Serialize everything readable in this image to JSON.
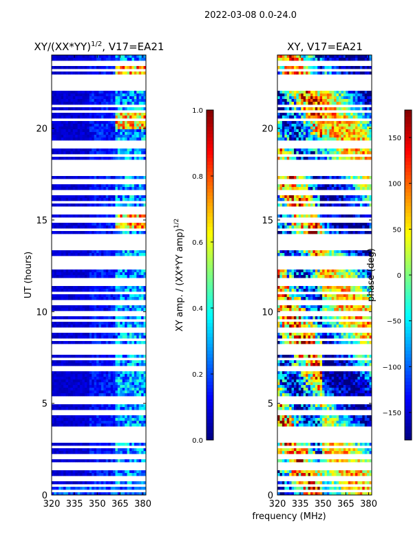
{
  "figure_title": "2022-03-08 0.0-24.0",
  "chart_data": [
    {
      "type": "heatmap",
      "title_main": "XY/(XX*YY)",
      "title_sup": "1/2",
      "title_suffix": ", V17=EA21",
      "xlabel": "",
      "ylabel": "UT (hours)",
      "xlim": [
        320,
        382
      ],
      "ylim": [
        0,
        24
      ],
      "x_ticks": [
        320,
        335,
        350,
        365,
        380
      ],
      "y_ticks": [
        0,
        5,
        10,
        15,
        20
      ],
      "colorbar": {
        "label": "XY amp. / (XX*YY amp)",
        "label_sup": "1/2",
        "range": [
          0.0,
          1.0
        ],
        "ticks": [
          "0.0",
          "0.2",
          "0.4",
          "0.6",
          "0.8",
          "1.0"
        ],
        "tick_values": [
          0.0,
          0.2,
          0.4,
          0.6,
          0.8,
          1.0
        ]
      }
    },
    {
      "type": "heatmap",
      "title": "XY, V17=EA21",
      "xlabel": "frequency (MHz)",
      "ylabel": "",
      "xlim": [
        320,
        382
      ],
      "ylim": [
        0,
        24
      ],
      "x_ticks": [
        320,
        335,
        350,
        365,
        380
      ],
      "y_ticks": [
        0,
        5,
        10,
        15,
        20
      ],
      "colorbar": {
        "label": "phase (deg)",
        "range": [
          -180,
          180
        ],
        "ticks": [
          "−150",
          "−100",
          "−50",
          "0",
          "50",
          "100",
          "150"
        ],
        "tick_values": [
          -150,
          -100,
          -50,
          0,
          50,
          100,
          150
        ]
      }
    }
  ],
  "flagged_hours": [
    0.2,
    0.5,
    0.9,
    1.5,
    1.7,
    2.0,
    2.2,
    2.6,
    2.9,
    3.1,
    3.3,
    3.5,
    3.6,
    4.4,
    4.6,
    5.1,
    5.3,
    6.8,
    7.0,
    7.4,
    7.7,
    7.9,
    8.1,
    8.5,
    8.9,
    9.1,
    9.5,
    9.8,
    10.0,
    10.5,
    11.0,
    11.5,
    11.7,
    12.4,
    12.6,
    12.8,
    13.0,
    13.5,
    13.6,
    13.8,
    14.0,
    14.2,
    14.5,
    15.0,
    15.4,
    15.6,
    16.0,
    16.5,
    17.0,
    17.2,
    17.5,
    17.7,
    18.0,
    18.2,
    18.5,
    19.0,
    19.2,
    20.5,
    20.9,
    21.2,
    22.2,
    22.5,
    22.8,
    23.2,
    23.5,
    23.6
  ]
}
